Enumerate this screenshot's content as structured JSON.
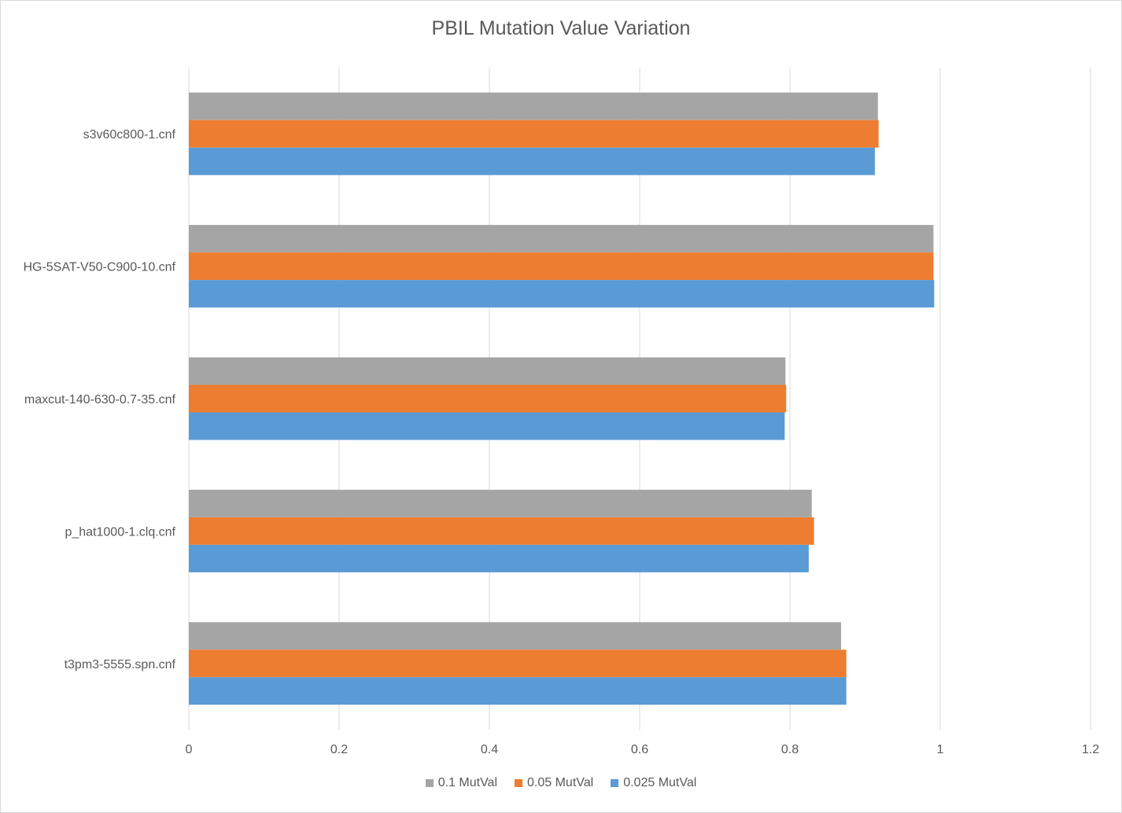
{
  "chart_data": {
    "type": "bar",
    "orientation": "horizontal",
    "title": "PBIL Mutation Value Variation",
    "categories": [
      "s3v60c800-1.cnf",
      "HG-5SAT-V50-C900-10.cnf",
      "maxcut-140-630-0.7-35.cnf",
      "p_hat1000-1.clq.cnf",
      "t3pm3-5555.spn.cnf"
    ],
    "series": [
      {
        "name": "0.1 MutVal",
        "color": "#a5a5a5",
        "values": [
          0.917,
          0.991,
          0.794,
          0.829,
          0.868
        ]
      },
      {
        "name": "0.05 MutVal",
        "color": "#ed7d31",
        "values": [
          0.918,
          0.991,
          0.795,
          0.832,
          0.875
        ]
      },
      {
        "name": "0.025 MutVal",
        "color": "#5b9bd5",
        "values": [
          0.913,
          0.992,
          0.793,
          0.825,
          0.875
        ]
      }
    ],
    "xlim": [
      0,
      1.2
    ],
    "xticks": [
      "0",
      "0.2",
      "0.4",
      "0.6",
      "0.8",
      "1",
      "1.2"
    ],
    "grid": true,
    "legend_position": "bottom"
  }
}
